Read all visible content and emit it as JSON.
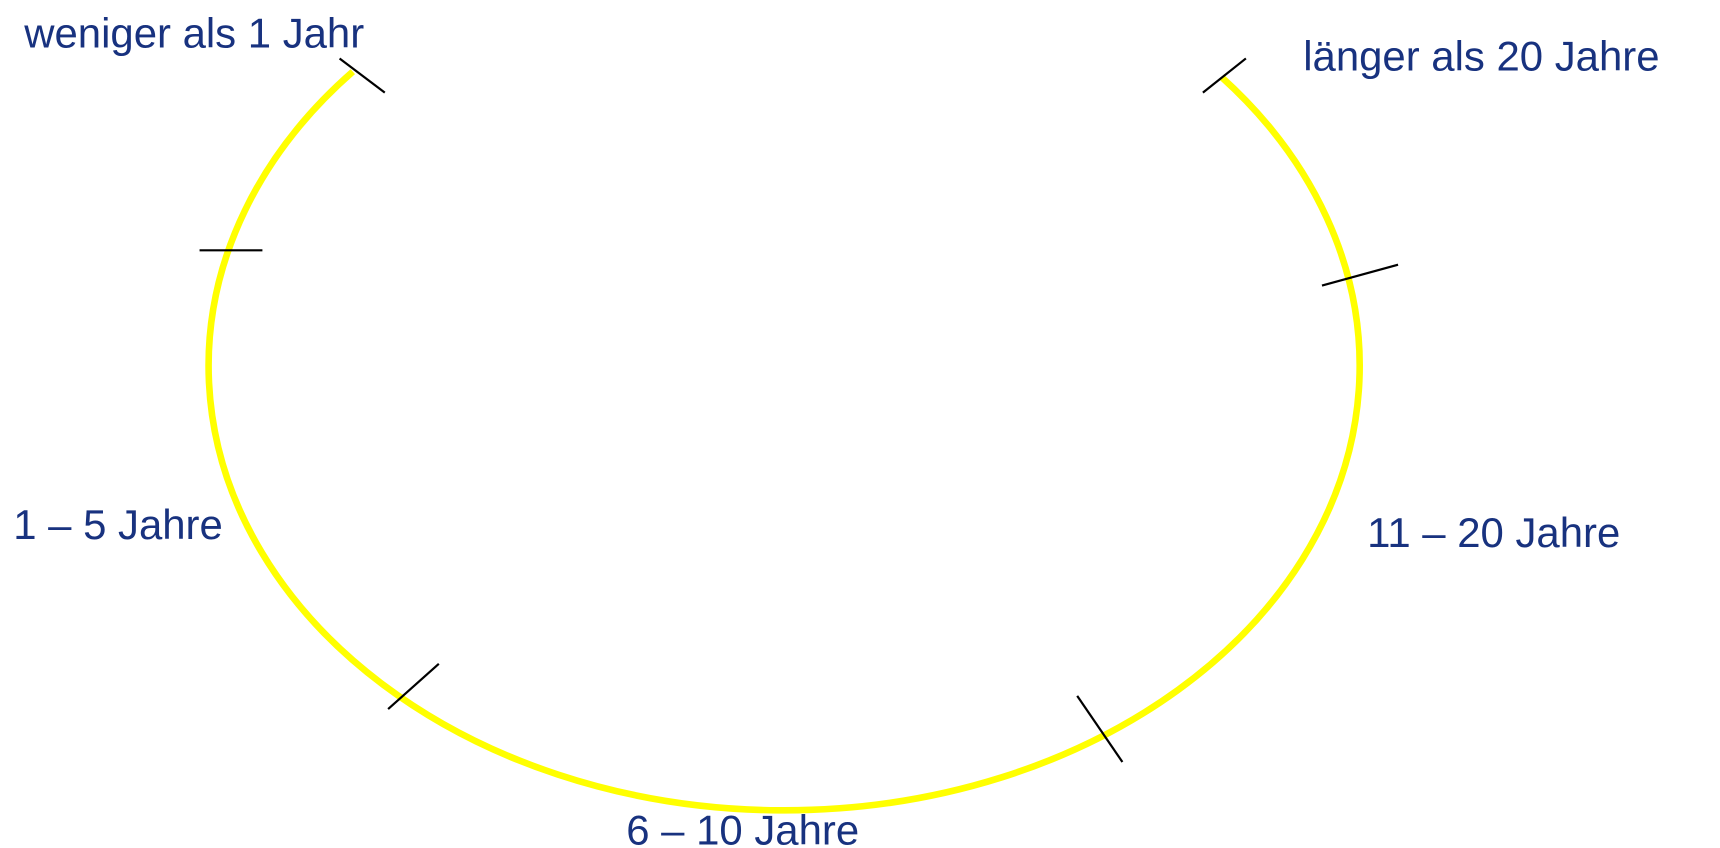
{
  "labels": [
    "weniger als 1 Jahr",
    "länger als 20 Jahre",
    "1 – 5 Jahre",
    "11 – 20 Jahre",
    "6 – 10 Jahre"
  ]
}
